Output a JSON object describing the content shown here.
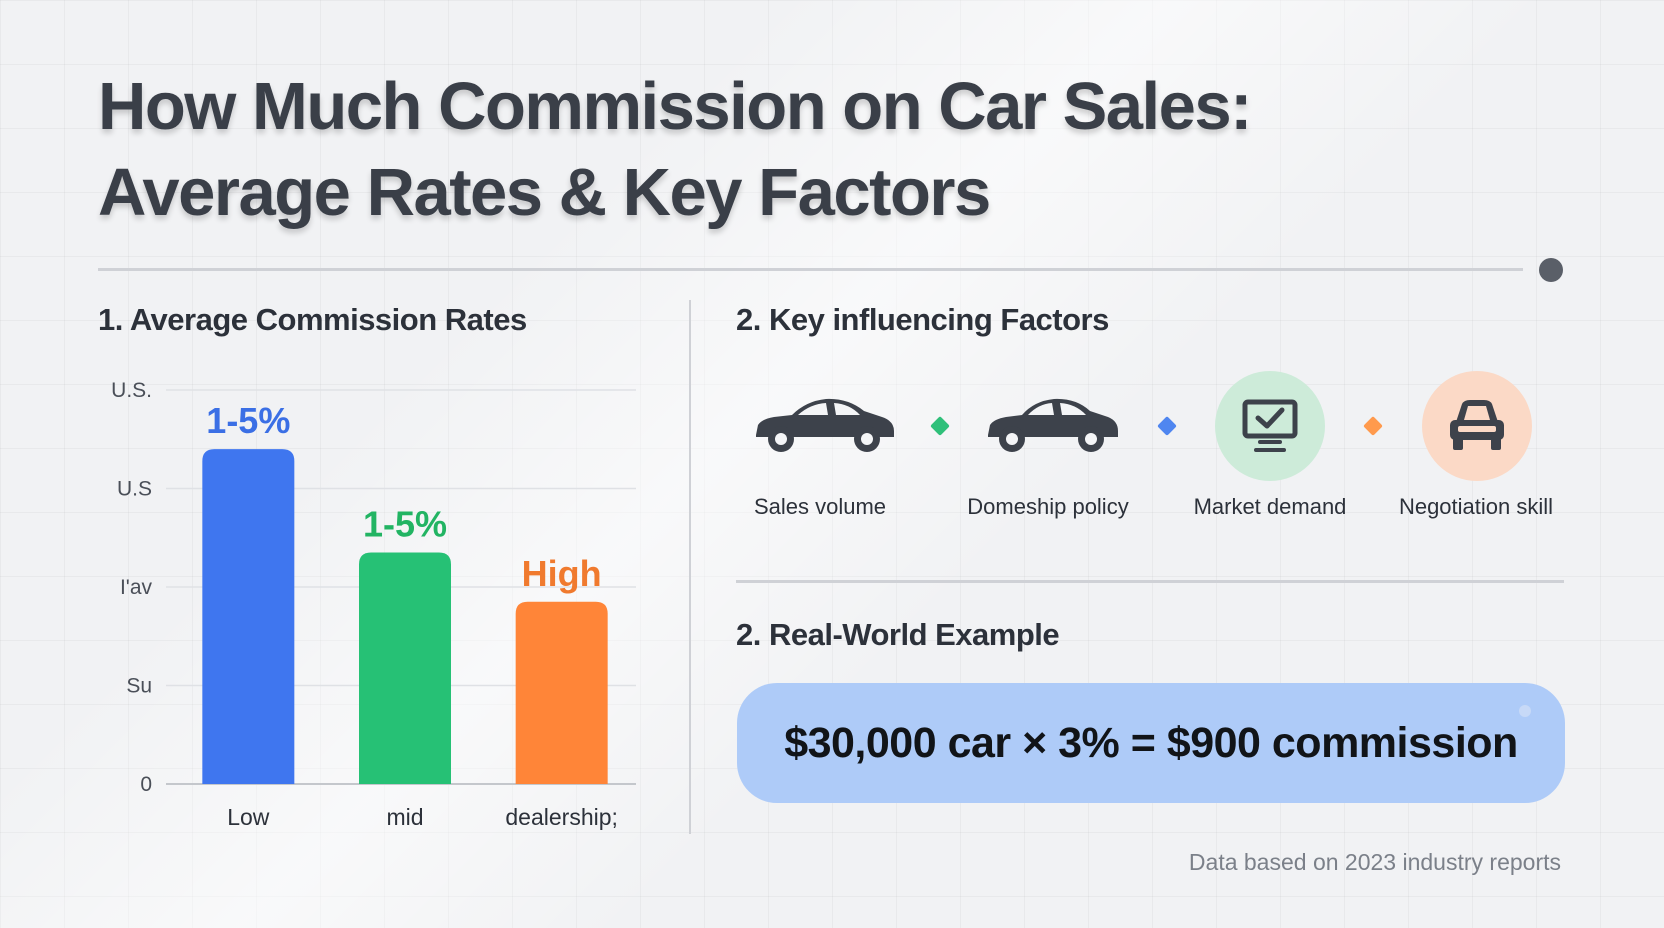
{
  "title": {
    "line1": "How Much Commission on Car Sales:",
    "line2": "Average Rates & Key Factors"
  },
  "section1": {
    "title": "1. Average Commission Rates"
  },
  "chart_data": {
    "type": "bar",
    "categories": [
      "Low",
      "mid",
      "dealership;"
    ],
    "values": [
      3.4,
      2.35,
      1.85
    ],
    "bar_labels": [
      "1-5%",
      "1-5%",
      "High"
    ],
    "bar_colors": [
      "#3f76ef",
      "#26c175",
      "#ff8538"
    ],
    "label_colors": [
      "#3b6fe5",
      "#22b463",
      "#f07a2e"
    ],
    "y_tick_labels": [
      "0",
      "Su",
      "I'av",
      "U.S",
      "U.S."
    ],
    "y_ticks": [
      0,
      1,
      2,
      3,
      4
    ],
    "ylim": [
      0,
      4
    ],
    "grid": true
  },
  "section2": {
    "title": "2. Key influencing Factors",
    "factors": [
      {
        "label": "Sales volume",
        "icon": "car-sedan-icon"
      },
      {
        "label": "Domeship policy",
        "icon": "car-coupe-icon"
      },
      {
        "label": "Market demand",
        "icon": "monitor-check-icon",
        "bg": "#cdebd9"
      },
      {
        "label": "Negotiation skill",
        "icon": "car-front-icon",
        "bg": "#fbd9c6"
      }
    ],
    "separator_colors": [
      "#2fc07a",
      "#4f86f0",
      "#ff9a4d"
    ]
  },
  "section3": {
    "title": "2. Real-World Example",
    "equation": "$30,000 car × 3% = $900 commission"
  },
  "footnote": "Data based on 2023 industry reports",
  "colors": {
    "accent_blue_box": "#aecbf8",
    "text_dark": "#2c313a"
  }
}
